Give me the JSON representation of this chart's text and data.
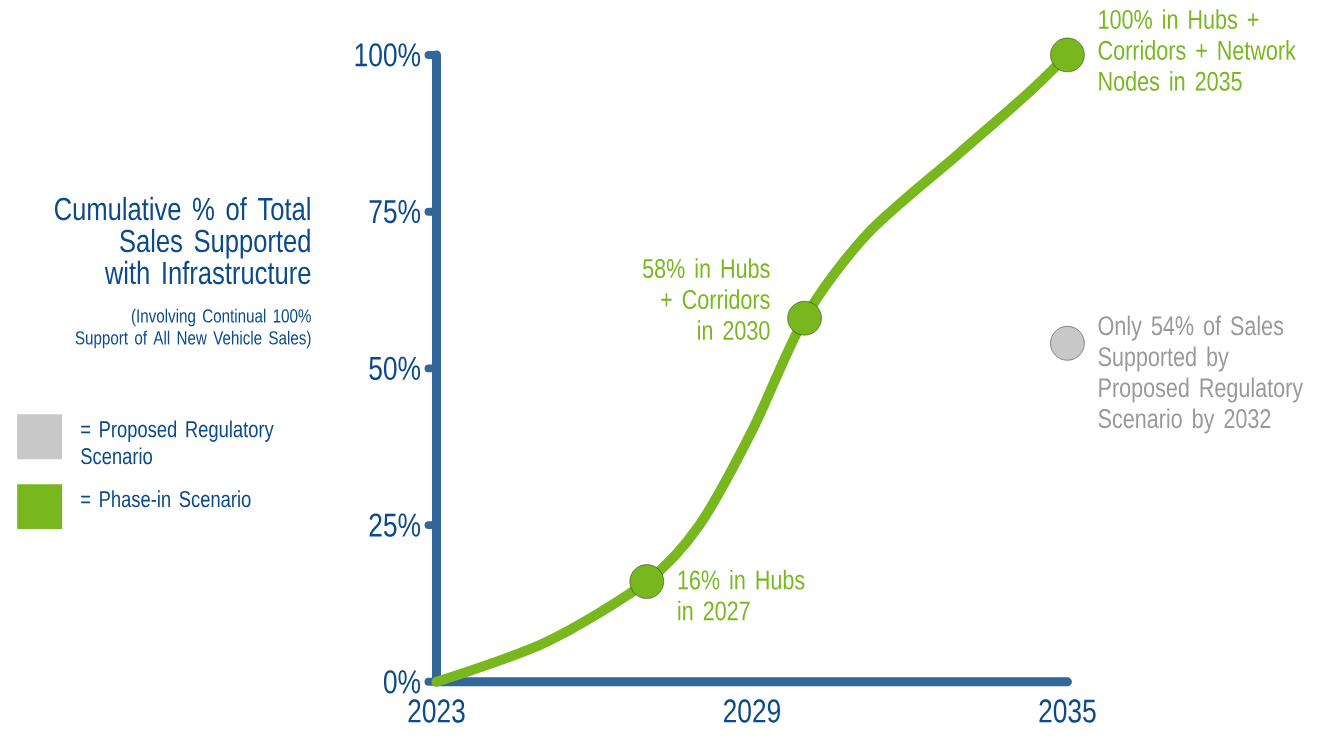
{
  "chart_data": {
    "type": "line",
    "ylabel": "Cumulative % of Total Sales Supported with Infrastructure",
    "xlim": [
      2023,
      2035
    ],
    "xticks": [
      2023,
      2029,
      2035
    ],
    "ylim": [
      0,
      100
    ],
    "yticks": [
      {
        "value": 0,
        "label": "0%"
      },
      {
        "value": 25,
        "label": "25%"
      },
      {
        "value": 50,
        "label": "50%"
      },
      {
        "value": 75,
        "label": "75%"
      },
      {
        "value": 100,
        "label": "100%"
      }
    ],
    "grid": false,
    "legend": "left",
    "series": [
      {
        "name": "= Proposed Regulatory Scenario",
        "type": "scatter",
        "color": "#c8c8c8",
        "x": [
          2035
        ],
        "values": [
          54
        ]
      },
      {
        "name": "= Phase-in Scenario",
        "color": "#78b81e",
        "x": [
          2023,
          2025.1,
          2027,
          2028,
          2029,
          2030,
          2031.2,
          2032.9,
          2034.2,
          2035
        ],
        "values": [
          0,
          6.4,
          16,
          25,
          40,
          58,
          71.5,
          84,
          93.5,
          100
        ]
      },
      {
        "type": "scatter",
        "color": "#78b81e",
        "x": [
          2027,
          2030,
          2035
        ],
        "values": [
          16,
          58,
          100
        ]
      }
    ],
    "annotations": [
      "(Involving Continual 100% Support of All New Vehicle Sales)",
      {
        "text": "16% in Hubs in 2027",
        "x": 2027,
        "y": 16
      },
      {
        "text": "58% in Hubs + Corridors in 2030",
        "x": 2030,
        "y": 58
      },
      {
        "text": "100% in Hubs + Corridors + Network Nodes in 2035",
        "x": 2035,
        "y": 100
      },
      {
        "text": "Only 54% of Sales Supported by Proposed Regulatory Scenario by 2032",
        "x": 2035,
        "y": 54
      }
    ]
  }
}
